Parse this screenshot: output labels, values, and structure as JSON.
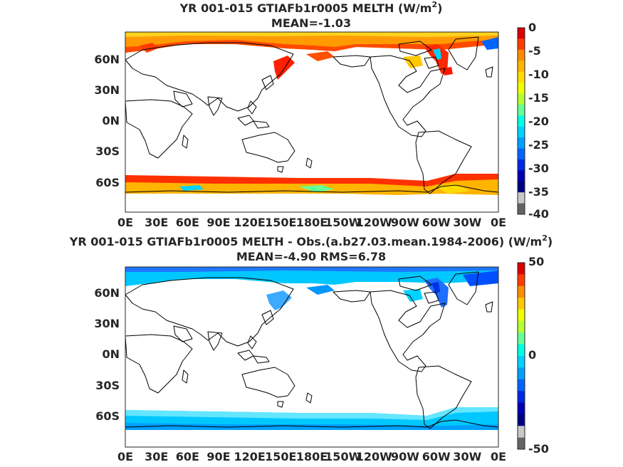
{
  "chart_data": [
    {
      "type": "heatmap",
      "title_main": "YR 001-015 GTIAFb1r0005  MELTH (W/m",
      "title_sup": "2",
      "title_end": ")",
      "subtitle": "MEAN=-1.03",
      "x_ticks": [
        "0E",
        "30E",
        "60E",
        "90E",
        "120E",
        "150E",
        "180E",
        "150W",
        "120W",
        "90W",
        "60W",
        "30W",
        "0E"
      ],
      "y_ticks": [
        "60N",
        "30N",
        "0N",
        "30S",
        "60S"
      ],
      "colorbar": {
        "range": [
          -40,
          0
        ],
        "ticks": [
          "0",
          "-5",
          "-10",
          "-15",
          "-20",
          "-25",
          "-30",
          "-35",
          "-40"
        ],
        "palette": [
          "#dc0000",
          "#ff3c00",
          "#ff8c00",
          "#ffb400",
          "#ffdc00",
          "#f0ff00",
          "#b4ff32",
          "#64ff96",
          "#00ffe6",
          "#00d2ff",
          "#00a0ff",
          "#0064ff",
          "#0028e6",
          "#0000b4",
          "#000080",
          "#c8c8c8",
          "#646464"
        ]
      }
    },
    {
      "type": "heatmap",
      "title_main": "YR 001-015 GTIAFb1r0005 MELTH - Obs.(a.b27.03.mean.1984-2006) (W/m",
      "title_sup": "2",
      "title_end": ")",
      "subtitle": "MEAN=-4.90 RMS=6.78",
      "x_ticks": [
        "0E",
        "30E",
        "60E",
        "90E",
        "120E",
        "150E",
        "180E",
        "150W",
        "120W",
        "90W",
        "60W",
        "30W",
        "0E"
      ],
      "y_ticks": [
        "60N",
        "30N",
        "0N",
        "30S",
        "60S"
      ],
      "colorbar": {
        "range": [
          -50,
          50
        ],
        "ticks": [
          "50",
          "0",
          "-50"
        ],
        "palette": [
          "#dc0000",
          "#ff3c00",
          "#ff8c00",
          "#ffc800",
          "#f0ff00",
          "#b4ff32",
          "#64ff96",
          "#00ffe6",
          "#00d2ff",
          "#00a0ff",
          "#0064ff",
          "#0028e6",
          "#0000b4",
          "#000080",
          "#c8c8c8",
          "#646464"
        ]
      }
    }
  ]
}
